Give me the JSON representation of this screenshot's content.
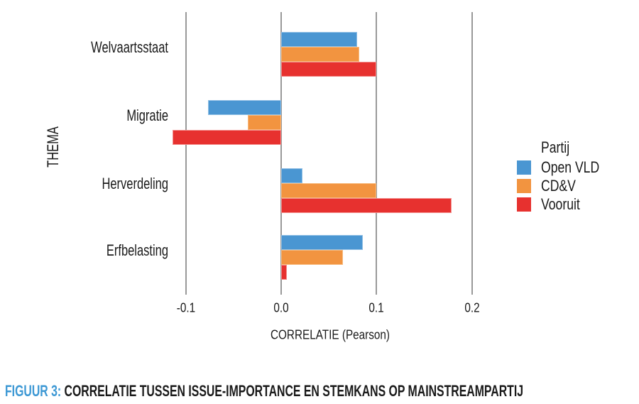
{
  "chart_data": {
    "type": "bar",
    "orientation": "horizontal",
    "title": "",
    "xlabel": "CORRELATIE (Pearson)",
    "ylabel": "THEMA",
    "legend_title": "Partij",
    "legend_position": "right",
    "grid": "vertical-only",
    "gridline_color": "#999999",
    "categories": [
      "Welvaartsstaat",
      "Migratie",
      "Herverdeling",
      "Erfbelasting"
    ],
    "series": [
      {
        "name": "Open VLD",
        "color": "#4A96D2",
        "border_color": "#8FBEE4",
        "values": [
          0.08,
          -0.077,
          0.022,
          0.086
        ]
      },
      {
        "name": "CD&V",
        "color": "#F29440",
        "border_color": "#F7BA7E",
        "values": [
          0.082,
          -0.035,
          0.1,
          0.065
        ]
      },
      {
        "name": "Vooruit",
        "color": "#E7312F",
        "border_color": "#F28D8B",
        "values": [
          0.1,
          -0.114,
          0.179,
          0.006
        ]
      }
    ],
    "x_ticks": [
      -0.1,
      0.0,
      0.1,
      0.2
    ],
    "x_tick_labels": [
      "-0.1",
      "0.0",
      "0.1",
      "0.2"
    ],
    "xlim": [
      -0.125,
      0.21
    ]
  },
  "caption": {
    "label": "FIGUUR 3:",
    "text": "CORRELATIE TUSSEN ISSUE-IMPORTANCE EN STEMKANS OP MAINSTREAMPARTIJ",
    "label_color": "#3D98D4"
  }
}
